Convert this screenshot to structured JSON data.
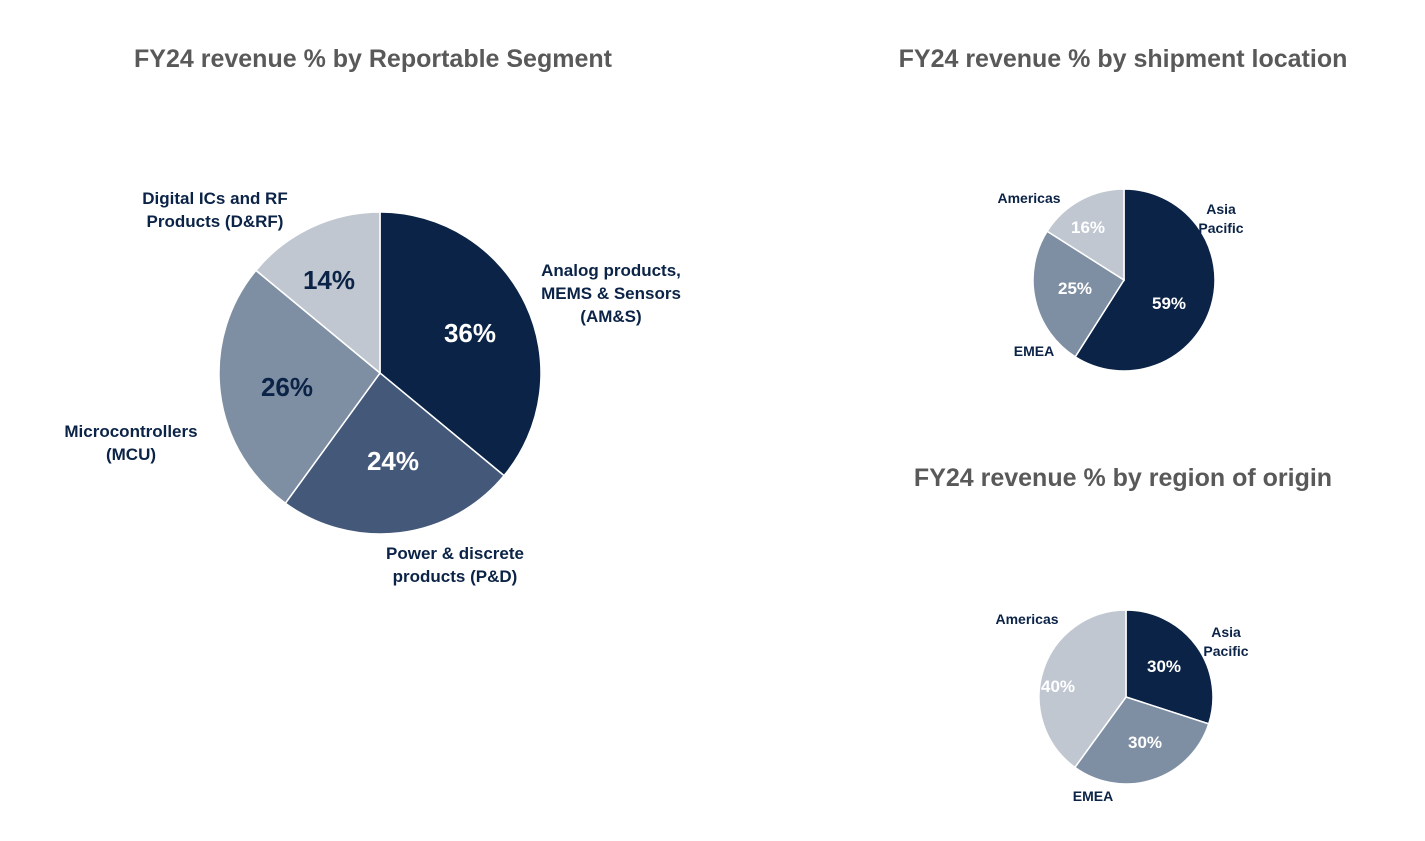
{
  "chart_data": [
    {
      "type": "pie",
      "title": "FY24 revenue % by Reportable Segment",
      "slices": [
        {
          "label": [
            "Analog products,",
            "MEMS & Sensors",
            "(AM&S)"
          ],
          "value": 36,
          "value_label": "36%",
          "color": "#0b2346",
          "text_color": "#ffffff"
        },
        {
          "label": [
            "Power & discrete",
            "products (P&D)"
          ],
          "value": 24,
          "value_label": "24%",
          "color": "#44597a",
          "text_color": "#ffffff"
        },
        {
          "label": [
            "Microcontrollers",
            "(MCU)"
          ],
          "value": 26,
          "value_label": "26%",
          "color": "#7f8fa3",
          "text_color": "#0b2346"
        },
        {
          "label": [
            "Digital ICs and RF",
            "Products (D&RF)"
          ],
          "value": 14,
          "value_label": "14%",
          "color": "#c0c7d1",
          "text_color": "#0b2346"
        }
      ]
    },
    {
      "type": "pie",
      "title": "FY24 revenue % by shipment location",
      "slices": [
        {
          "label": [
            "Asia",
            "Pacific"
          ],
          "value": 59,
          "value_label": "59%",
          "color": "#0b2346",
          "text_color": "#ffffff"
        },
        {
          "label": [
            "EMEA"
          ],
          "value": 25,
          "value_label": "25%",
          "color": "#7f8fa3",
          "text_color": "#ffffff"
        },
        {
          "label": [
            "Americas"
          ],
          "value": 16,
          "value_label": "16%",
          "color": "#c0c7d1",
          "text_color": "#ffffff"
        }
      ]
    },
    {
      "type": "pie",
      "title": "FY24 revenue % by region of origin",
      "slices": [
        {
          "label": [
            "Asia",
            "Pacific"
          ],
          "value": 30,
          "value_label": "30%",
          "color": "#0b2346",
          "text_color": "#ffffff"
        },
        {
          "label": [
            "EMEA"
          ],
          "value": 30,
          "value_label": "30%",
          "color": "#7f8fa3",
          "text_color": "#ffffff"
        },
        {
          "label": [
            "Americas"
          ],
          "value": 40,
          "value_label": "40%",
          "color": "#c0c7d1",
          "text_color": "#ffffff"
        }
      ]
    }
  ]
}
